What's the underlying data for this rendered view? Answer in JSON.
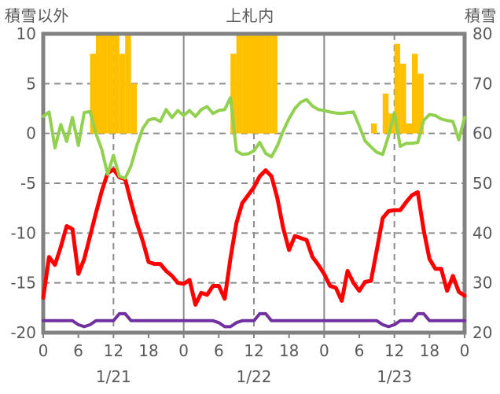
{
  "header": {
    "left_axis_title": "積雪以外",
    "chart_title": "上札内",
    "right_axis_title": "積雪"
  },
  "colors": {
    "frame": "#828282",
    "grid": "#8C8C8C",
    "text": "#595959",
    "bar_orange": "#FFC000",
    "line_red": "#FF0000",
    "line_green": "#92D050",
    "line_purple": "#7030A0"
  },
  "chart_data": {
    "type": "combo",
    "title": "上札内",
    "left_axis": {
      "label": "積雪以外",
      "max": 10,
      "min": -20,
      "ticks": [
        10,
        5,
        0,
        -5,
        -10,
        -15,
        -20
      ]
    },
    "right_axis": {
      "label": "積雪",
      "max": 80,
      "min": 20,
      "ticks": [
        80,
        70,
        60,
        50,
        40,
        30,
        20
      ]
    },
    "x_axis": {
      "total_hours": 72,
      "tick_step_hours": 6,
      "tick_labels": [
        "0",
        "6",
        "12",
        "18",
        "0",
        "6",
        "12",
        "18",
        "0",
        "6",
        "12",
        "18",
        "0"
      ],
      "day_labels": [
        "1/21",
        "1/22",
        "1/23"
      ],
      "grid": "solid at day boundaries, dashed at each 12:00"
    },
    "series": [
      {
        "name": "orange-bars",
        "type": "bar",
        "axis": "left",
        "color": "#FFC000",
        "values": [
          0,
          0,
          0,
          0,
          0,
          0,
          0,
          0,
          8,
          10,
          10,
          10,
          10,
          8,
          10,
          5,
          0,
          0,
          0,
          0,
          0,
          0,
          0,
          0,
          0,
          0,
          0,
          0,
          0,
          0,
          0,
          0,
          8,
          10,
          10,
          10,
          10,
          10,
          10,
          10,
          0,
          0,
          0,
          0,
          0,
          0,
          0,
          0,
          0,
          0,
          0,
          0,
          0,
          0,
          0,
          0,
          1,
          0,
          4,
          2,
          9,
          7,
          1,
          8,
          6,
          0,
          0,
          0,
          0,
          0,
          0,
          0
        ]
      },
      {
        "name": "red-line",
        "type": "line",
        "axis": "left",
        "color": "#FF0000",
        "width": 5,
        "values": [
          -16.5,
          -12.4,
          -13.2,
          -11.4,
          -9.3,
          -9.6,
          -14.1,
          -12.6,
          -10.3,
          -8.0,
          -5.8,
          -4.0,
          -3.6,
          -4.4,
          -4.6,
          -6.9,
          -9.0,
          -10.8,
          -12.9,
          -13.1,
          -13.1,
          -13.8,
          -14.3,
          -15.0,
          -15.1,
          -14.7,
          -17.2,
          -16.0,
          -16.2,
          -15.3,
          -15.3,
          -16.6,
          -12.5,
          -9.0,
          -7.0,
          -6.2,
          -5.4,
          -4.3,
          -3.7,
          -4.3,
          -6.5,
          -9.5,
          -11.7,
          -10.3,
          -10.5,
          -10.7,
          -12.4,
          -13.2,
          -14.1,
          -15.3,
          -15.5,
          -16.8,
          -13.8,
          -15.0,
          -15.8,
          -14.9,
          -14.8,
          -11.7,
          -8.5,
          -7.8,
          -7.7,
          -7.7,
          -6.9,
          -6.2,
          -5.9,
          -9.7,
          -12.6,
          -13.6,
          -13.6,
          -15.8,
          -14.3,
          -15.9,
          -16.3
        ]
      },
      {
        "name": "green-line",
        "type": "line",
        "axis": "right",
        "color": "#92D050",
        "width": 4,
        "values": [
          63.4,
          64.3,
          57.1,
          61.8,
          58.4,
          63.2,
          57.6,
          64.2,
          64.4,
          60.0,
          56.8,
          51.8,
          55.6,
          51.4,
          51.0,
          53.5,
          57.6,
          61.0,
          62.7,
          63.0,
          62.4,
          64.8,
          63.2,
          64.6,
          63.6,
          64.6,
          63.4,
          64.8,
          65.4,
          64.0,
          64.6,
          64.8,
          67.2,
          56.5,
          55.8,
          55.9,
          56.5,
          58.2,
          56.0,
          55.3,
          57.5,
          60.5,
          63.0,
          65.0,
          66.3,
          66.8,
          65.5,
          64.8,
          64.6,
          64.3,
          64.1,
          64.0,
          64.2,
          64.3,
          61.5,
          58.5,
          57.3,
          56.2,
          55.8,
          59.5,
          64.2,
          57.4,
          58.0,
          58.0,
          58.2,
          62.6,
          63.8,
          63.6,
          62.9,
          62.6,
          62.4,
          58.7,
          63.2
        ]
      },
      {
        "name": "purple-line",
        "type": "line",
        "axis": "left",
        "color": "#7030A0",
        "width": 4,
        "values": [
          -18.8,
          -18.8,
          -18.8,
          -18.8,
          -18.8,
          -18.8,
          -19.2,
          -19.4,
          -19.2,
          -18.8,
          -18.8,
          -18.8,
          -18.8,
          -18.1,
          -18.1,
          -18.8,
          -18.8,
          -18.8,
          -18.8,
          -18.8,
          -18.8,
          -18.8,
          -18.8,
          -18.8,
          -18.8,
          -18.8,
          -18.8,
          -18.8,
          -18.8,
          -18.8,
          -19.0,
          -19.4,
          -19.4,
          -19.0,
          -18.8,
          -18.8,
          -18.8,
          -18.1,
          -18.1,
          -18.8,
          -18.8,
          -18.8,
          -18.8,
          -18.8,
          -18.8,
          -18.8,
          -18.8,
          -18.8,
          -18.8,
          -18.8,
          -18.8,
          -18.8,
          -18.8,
          -18.8,
          -18.8,
          -18.8,
          -18.8,
          -18.8,
          -19.2,
          -19.4,
          -19.2,
          -18.8,
          -18.8,
          -18.8,
          -18.1,
          -18.1,
          -18.8,
          -18.8,
          -18.8,
          -18.8,
          -18.8,
          -18.8,
          -18.8
        ]
      }
    ]
  }
}
